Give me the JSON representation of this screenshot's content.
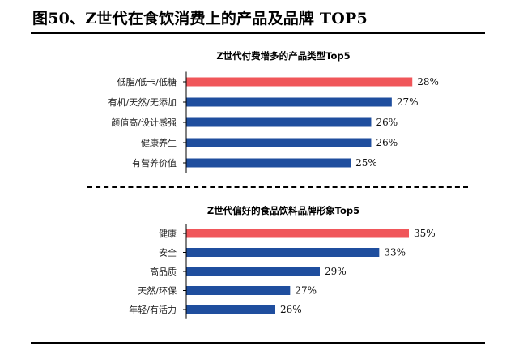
{
  "figure_title": "图50、Z世代在食饮消费上的产品及品牌 TOP5",
  "colors": {
    "highlight": "#f0565a",
    "bar": "#1f4e9e",
    "axis": "#000000"
  },
  "chart_data": [
    {
      "type": "bar",
      "orientation": "horizontal",
      "title": "Z世代付费增多的产品类型Top5",
      "categories": [
        "低脂/低卡/低糖",
        "有机/天然/无添加",
        "颜值高/设计感强",
        "健康养生",
        "有营养价值"
      ],
      "values": [
        28,
        27,
        26,
        26,
        25
      ],
      "value_labels": [
        "28%",
        "27%",
        "26%",
        "26%",
        "25%"
      ],
      "highlight_index": 0,
      "xlim": [
        17,
        30
      ],
      "grid": false
    },
    {
      "type": "bar",
      "orientation": "horizontal",
      "title": "Z世代偏好的食品饮料品牌形象Top5",
      "categories": [
        "健康",
        "安全",
        "高品质",
        "天然/环保",
        "年轻/有活力"
      ],
      "values": [
        35,
        33,
        29,
        27,
        26
      ],
      "value_labels": [
        "35%",
        "33%",
        "29%",
        "27%",
        "26%"
      ],
      "highlight_index": 0,
      "xlim": [
        20,
        38
      ],
      "grid": false
    }
  ]
}
